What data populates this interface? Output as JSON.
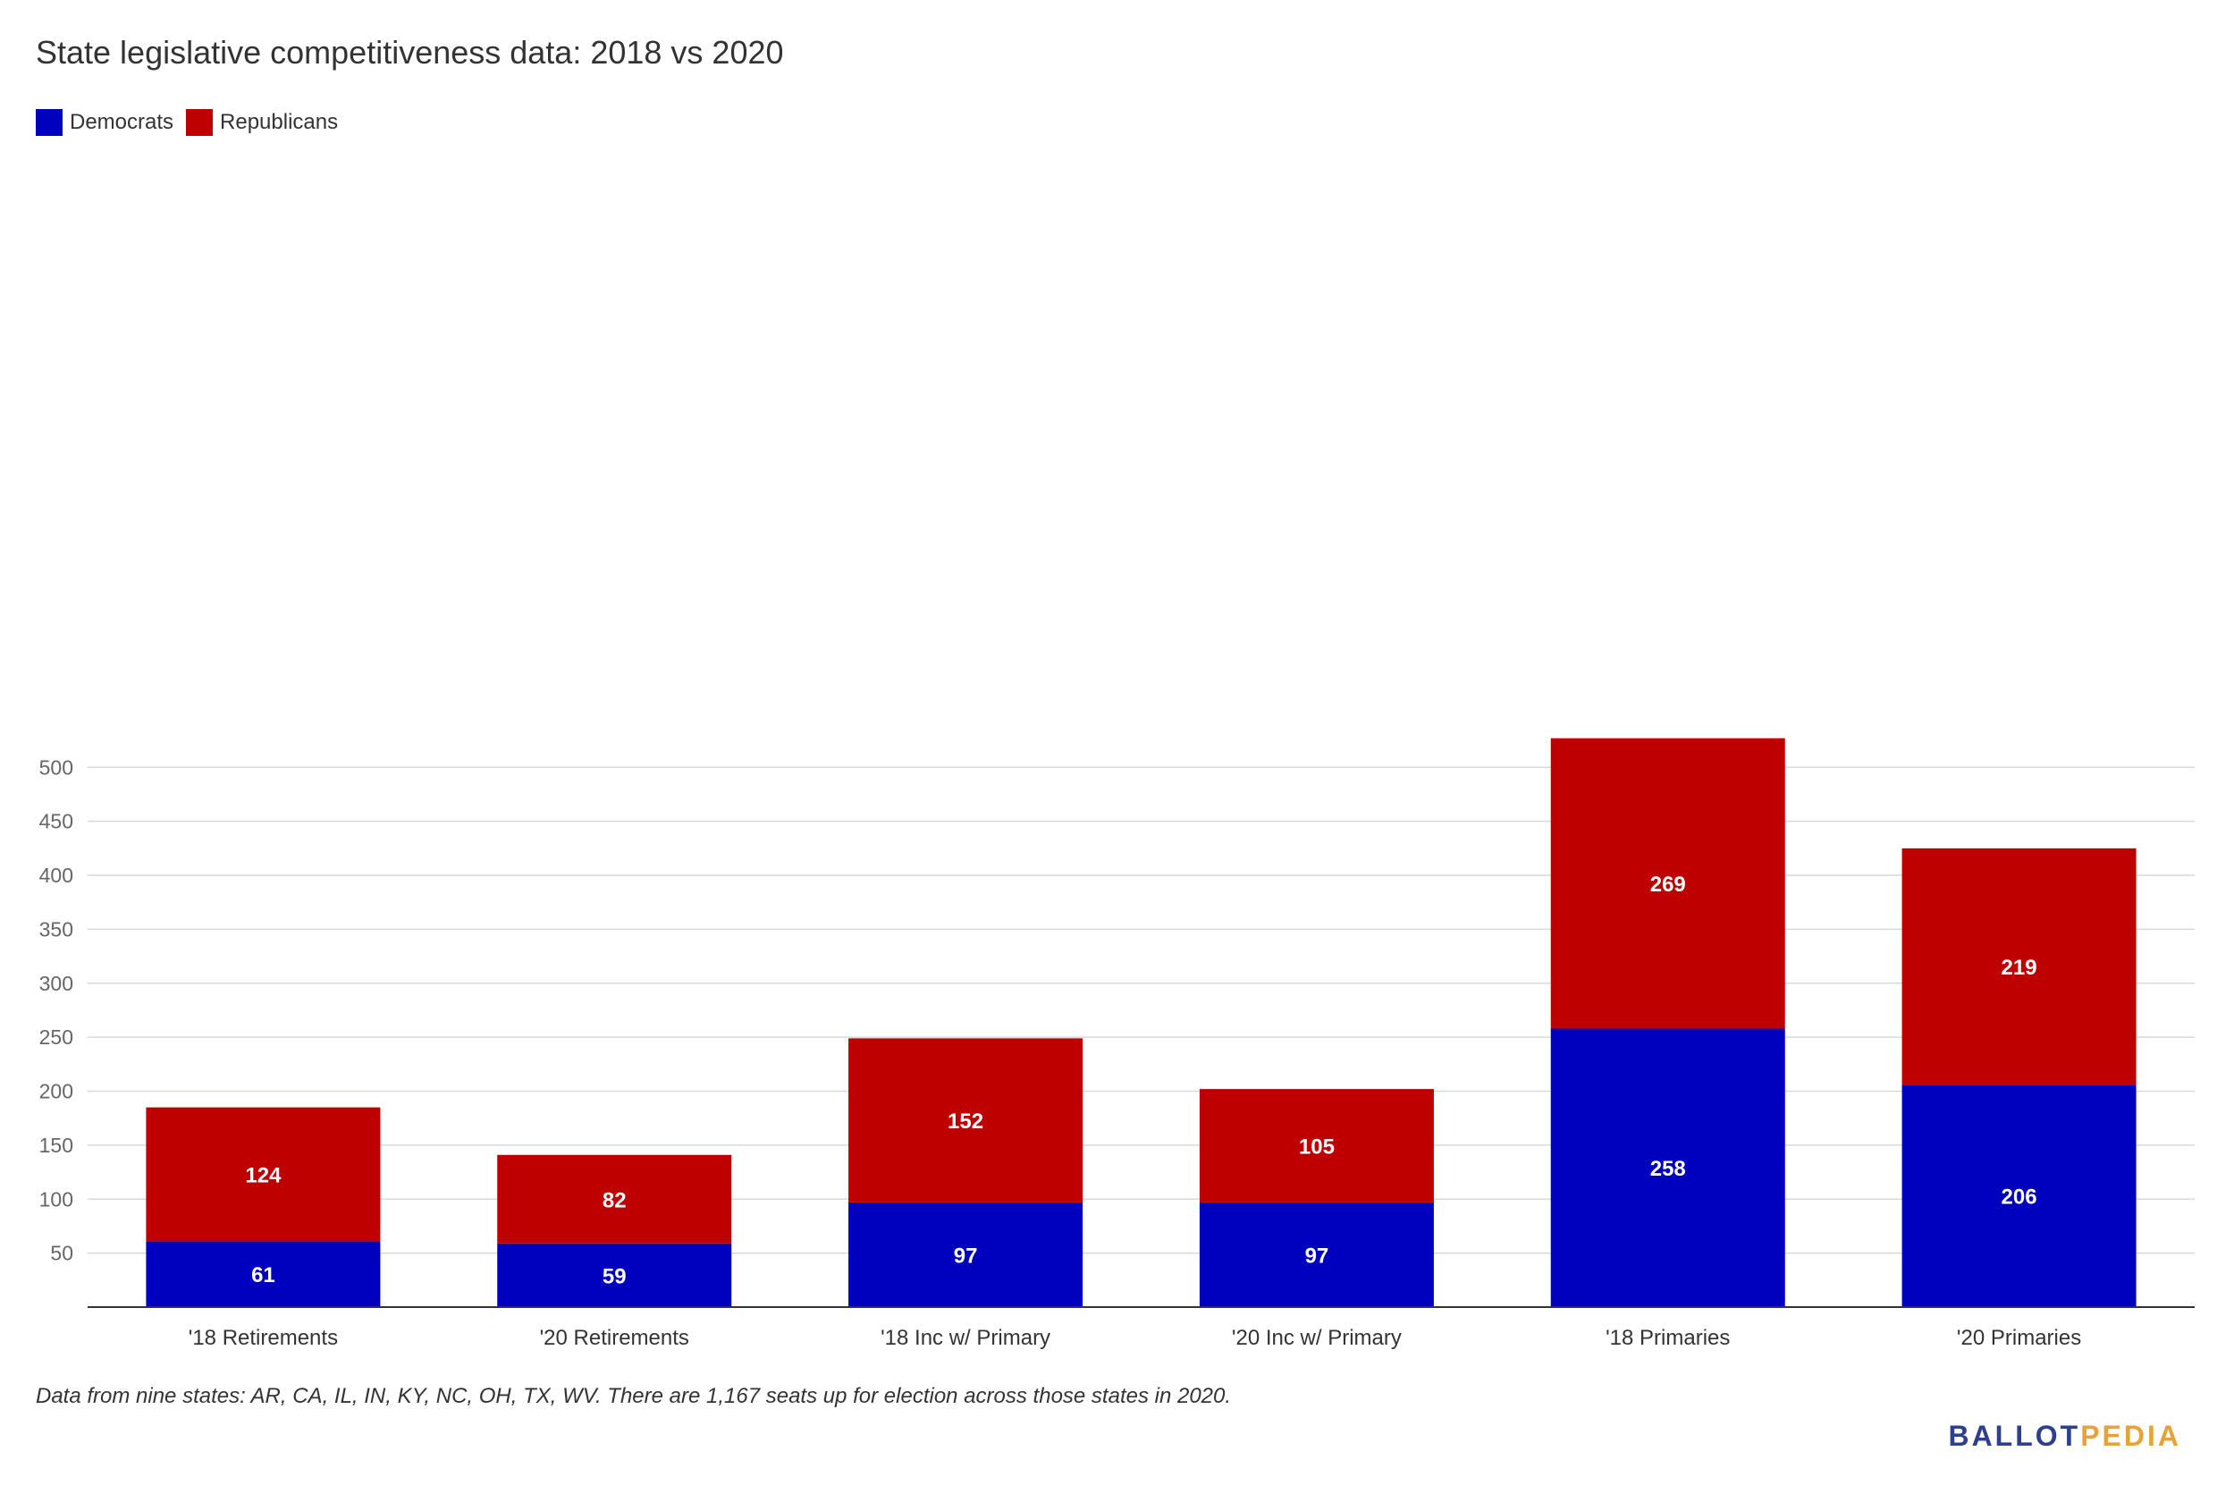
{
  "chart_data": {
    "type": "bar",
    "stacked": true,
    "title": "State legislative competitiveness data: 2018 vs 2020",
    "categories": [
      "'18 Retirements",
      "'20 Retirements",
      "'18 Inc w/ Primary",
      "'20 Inc w/ Primary",
      "'18 Primaries",
      "'20 Primaries"
    ],
    "series": [
      {
        "name": "Democrats",
        "color": "#0000bf",
        "values": [
          61,
          59,
          97,
          97,
          258,
          206
        ]
      },
      {
        "name": "Republicans",
        "color": "#bf0000",
        "values": [
          124,
          82,
          152,
          105,
          269,
          219
        ]
      }
    ],
    "yticks": [
      "50",
      "100",
      "150",
      "200",
      "250",
      "300",
      "350",
      "400",
      "450",
      "500"
    ],
    "ylim": [
      0,
      525
    ],
    "grid": true,
    "legend_position": "top-left",
    "xlabel": "",
    "ylabel": ""
  },
  "legend": {
    "democrats": "Democrats",
    "republicans": "Republicans"
  },
  "footnote": "Data from nine states: AR, CA, IL, IN, KY, NC, OH, TX, WV. There are 1,167 seats up for election across those states in 2020.",
  "logo": {
    "part1": "BALLOT",
    "part2": "PEDIA"
  },
  "colors": {
    "democrats": "#0000bf",
    "republicans": "#bf0000",
    "logo_blue": "#2d3f8f",
    "logo_orange": "#e8a23a"
  }
}
